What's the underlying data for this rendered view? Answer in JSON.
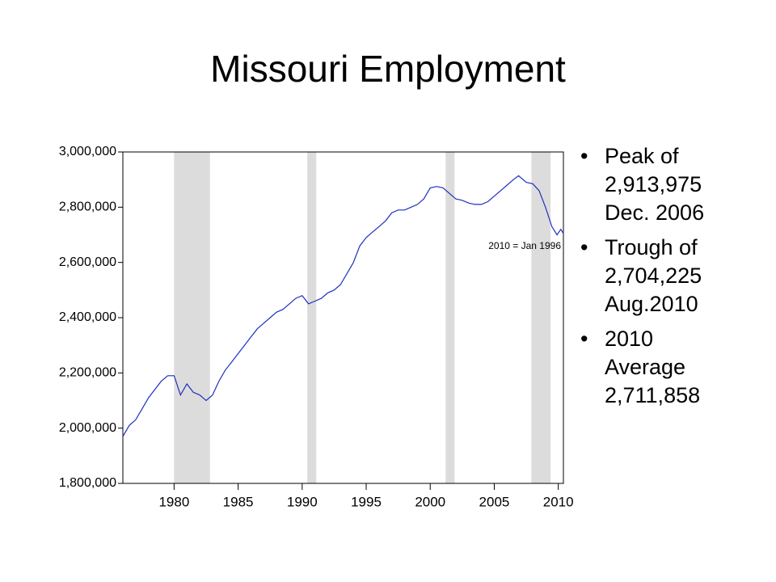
{
  "title": "Missouri Employment",
  "bullets": [
    "Peak of 2,913,975 Dec. 2006",
    "Trough of 2,704,225 Aug.2010",
    "2010 Average 2,711,858"
  ],
  "chart_data": {
    "type": "line",
    "annotation": "2010 = Jan 1996",
    "xlim": [
      1976,
      2010.4
    ],
    "xticks": [
      1980,
      1985,
      1990,
      1995,
      2000,
      2005,
      2010
    ],
    "ylim": [
      1800000,
      3000000
    ],
    "yticks": [
      {
        "value": 1800000,
        "label": "1,800,000"
      },
      {
        "value": 2000000,
        "label": "2,000,000"
      },
      {
        "value": 2200000,
        "label": "2,200,000"
      },
      {
        "value": 2400000,
        "label": "2,400,000"
      },
      {
        "value": 2600000,
        "label": "2,600,000"
      },
      {
        "value": 2800000,
        "label": "2,800,000"
      },
      {
        "value": 3000000,
        "label": "3,000,000"
      }
    ],
    "shaded_periods": {
      "color": "#dcdcdc",
      "ranges": [
        [
          1980,
          1982.8
        ],
        [
          1990.4,
          1991.1
        ],
        [
          2001.2,
          2001.9
        ],
        [
          2007.9,
          2009.4
        ]
      ]
    },
    "series": [
      {
        "color": "#1f2fbf",
        "x": [
          1976,
          1976.5,
          1977,
          1977.5,
          1978,
          1978.5,
          1979,
          1979.5,
          1980,
          1980.5,
          1981,
          1981.5,
          1982,
          1982.5,
          1983,
          1983.5,
          1984,
          1984.5,
          1985,
          1985.5,
          1986,
          1986.5,
          1987,
          1987.5,
          1988,
          1988.5,
          1989,
          1989.5,
          1990,
          1990.5,
          1991,
          1991.5,
          1992,
          1992.5,
          1993,
          1993.5,
          1994,
          1994.5,
          1995,
          1995.5,
          1996,
          1996.5,
          1997,
          1997.5,
          1998,
          1998.5,
          1999,
          1999.5,
          2000,
          2000.5,
          2001,
          2001.5,
          2002,
          2002.5,
          2003,
          2003.5,
          2004,
          2004.5,
          2005,
          2005.5,
          2006,
          2006.5,
          2006.9,
          2007.5,
          2008,
          2008.5,
          2009,
          2009.5,
          2009.9,
          2010.2,
          2010.4
        ],
        "values": [
          1970000,
          2010000,
          2030000,
          2070000,
          2110000,
          2140000,
          2170000,
          2190000,
          2190000,
          2120000,
          2160000,
          2130000,
          2120000,
          2100000,
          2120000,
          2170000,
          2210000,
          2240000,
          2270000,
          2300000,
          2330000,
          2360000,
          2380000,
          2400000,
          2420000,
          2430000,
          2450000,
          2470000,
          2480000,
          2450000,
          2460000,
          2470000,
          2490000,
          2500000,
          2520000,
          2560000,
          2600000,
          2660000,
          2690000,
          2710000,
          2730000,
          2750000,
          2780000,
          2790000,
          2790000,
          2800000,
          2810000,
          2830000,
          2870000,
          2875000,
          2870000,
          2850000,
          2830000,
          2825000,
          2815000,
          2810000,
          2810000,
          2820000,
          2840000,
          2860000,
          2880000,
          2900000,
          2913975,
          2890000,
          2885000,
          2860000,
          2800000,
          2730000,
          2700000,
          2720000,
          2705000
        ]
      }
    ]
  }
}
